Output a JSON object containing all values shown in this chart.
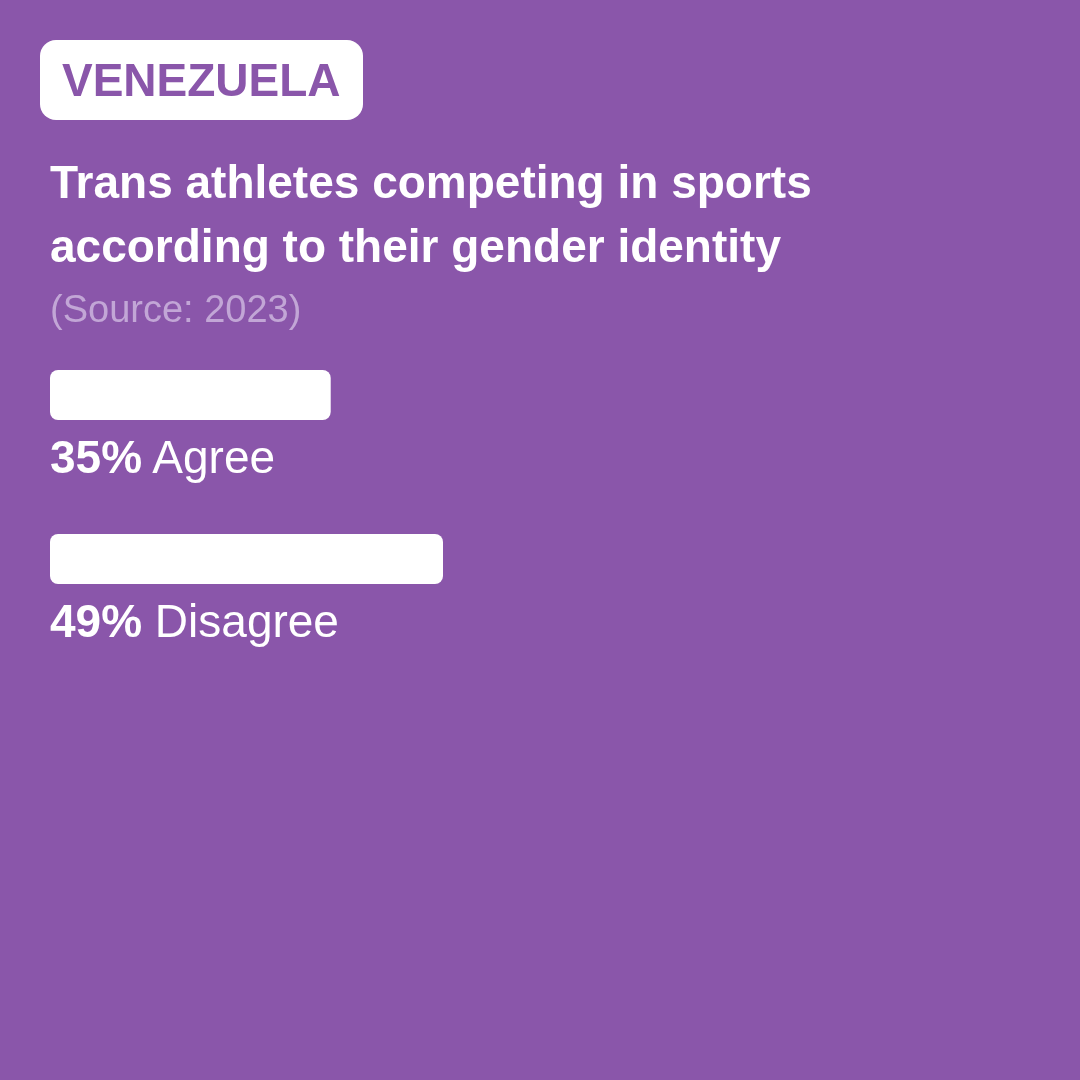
{
  "chart_data": {
    "type": "bar",
    "orientation": "horizontal",
    "subtitle": "VENEZUELA",
    "title": "Trans athletes competing in sports according to their gender identity",
    "annotations": [
      "(Source: 2023)"
    ],
    "categories": [
      "Agree",
      "Disagree"
    ],
    "values": [
      35,
      49
    ],
    "value_labels": [
      "35%",
      "49%"
    ],
    "color": "#ffffff",
    "tick_labels": false
  }
}
